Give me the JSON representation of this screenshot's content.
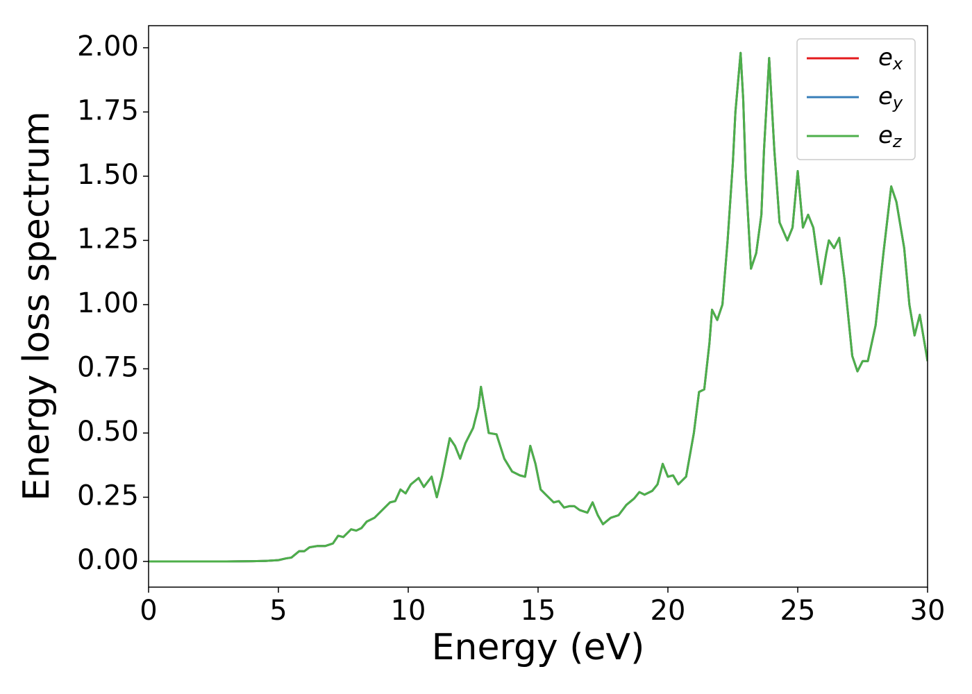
{
  "chart_data": {
    "type": "line",
    "xlabel": "Energy (eV)",
    "ylabel": "Energy loss spectrum",
    "xlim": [
      0,
      30
    ],
    "xticks": [
      0,
      5,
      10,
      15,
      20,
      25,
      30
    ],
    "ylim": [
      -0.1,
      2.086
    ],
    "yticks": [
      {
        "value": 0,
        "label": "0.00"
      },
      {
        "value": 0.25,
        "label": "0.25"
      },
      {
        "value": 0.5,
        "label": "0.50"
      },
      {
        "value": 0.75,
        "label": "0.75"
      },
      {
        "value": 1,
        "label": "1.00"
      },
      {
        "value": 1.25,
        "label": "1.25"
      },
      {
        "value": 1.5,
        "label": "1.50"
      },
      {
        "value": 1.75,
        "label": "1.75"
      },
      {
        "value": 2,
        "label": "2.00"
      }
    ],
    "legend": "upper right",
    "x": [
      0,
      1,
      2,
      3,
      4,
      4.5,
      5,
      5.3,
      5.5,
      5.8,
      6.0,
      6.2,
      6.5,
      6.8,
      7.1,
      7.3,
      7.5,
      7.8,
      8.0,
      8.2,
      8.4,
      8.7,
      9.0,
      9.3,
      9.5,
      9.7,
      9.9,
      10.1,
      10.4,
      10.6,
      10.9,
      11.1,
      11.3,
      11.6,
      11.8,
      12.0,
      12.2,
      12.5,
      12.7,
      12.8,
      12.9,
      13.1,
      13.4,
      13.7,
      14.0,
      14.3,
      14.5,
      14.7,
      14.9,
      15.1,
      15.3,
      15.6,
      15.8,
      16.0,
      16.2,
      16.4,
      16.6,
      16.9,
      17.1,
      17.3,
      17.5,
      17.8,
      18.1,
      18.4,
      18.7,
      18.9,
      19.1,
      19.4,
      19.6,
      19.8,
      20.0,
      20.2,
      20.4,
      20.7,
      21.0,
      21.2,
      21.4,
      21.6,
      21.7,
      21.9,
      22.1,
      22.3,
      22.5,
      22.6,
      22.8,
      22.9,
      23.0,
      23.2,
      23.4,
      23.6,
      23.7,
      23.9,
      24.1,
      24.3,
      24.6,
      24.8,
      25.0,
      25.2,
      25.4,
      25.6,
      25.9,
      26.1,
      26.2,
      26.4,
      26.6,
      26.8,
      27.1,
      27.3,
      27.5,
      27.7,
      28.0,
      28.3,
      28.6,
      28.8,
      29.1,
      29.3,
      29.5,
      29.7,
      30.0
    ],
    "series": [
      {
        "name": "ex",
        "color": "#e41a1c",
        "values": [
          0,
          0,
          0,
          0,
          0.001,
          0.002,
          0.005,
          0.012,
          0.015,
          0.04,
          0.04,
          0.055,
          0.06,
          0.06,
          0.07,
          0.1,
          0.095,
          0.125,
          0.12,
          0.13,
          0.155,
          0.17,
          0.2,
          0.23,
          0.235,
          0.28,
          0.265,
          0.3,
          0.325,
          0.29,
          0.33,
          0.25,
          0.33,
          0.48,
          0.45,
          0.4,
          0.46,
          0.52,
          0.6,
          0.68,
          0.62,
          0.5,
          0.495,
          0.4,
          0.35,
          0.335,
          0.33,
          0.45,
          0.38,
          0.28,
          0.26,
          0.23,
          0.235,
          0.21,
          0.215,
          0.215,
          0.2,
          0.19,
          0.23,
          0.18,
          0.145,
          0.17,
          0.18,
          0.22,
          0.245,
          0.27,
          0.26,
          0.275,
          0.3,
          0.38,
          0.33,
          0.335,
          0.3,
          0.33,
          0.5,
          0.66,
          0.67,
          0.85,
          0.98,
          0.94,
          1.0,
          1.25,
          1.55,
          1.75,
          1.98,
          1.8,
          1.5,
          1.14,
          1.2,
          1.35,
          1.6,
          1.96,
          1.6,
          1.32,
          1.25,
          1.3,
          1.52,
          1.3,
          1.35,
          1.3,
          1.08,
          1.2,
          1.25,
          1.22,
          1.26,
          1.1,
          0.8,
          0.74,
          0.78,
          0.78,
          0.92,
          1.2,
          1.46,
          1.4,
          1.22,
          1.0,
          0.88,
          0.96,
          0.78
        ]
      },
      {
        "name": "ey",
        "color": "#377eb8",
        "values": [
          0,
          0,
          0,
          0,
          0.001,
          0.002,
          0.005,
          0.012,
          0.015,
          0.04,
          0.04,
          0.055,
          0.06,
          0.06,
          0.07,
          0.1,
          0.095,
          0.125,
          0.12,
          0.13,
          0.155,
          0.17,
          0.2,
          0.23,
          0.235,
          0.28,
          0.265,
          0.3,
          0.325,
          0.29,
          0.33,
          0.25,
          0.33,
          0.48,
          0.45,
          0.4,
          0.46,
          0.52,
          0.6,
          0.68,
          0.62,
          0.5,
          0.495,
          0.4,
          0.35,
          0.335,
          0.33,
          0.45,
          0.38,
          0.28,
          0.26,
          0.23,
          0.235,
          0.21,
          0.215,
          0.215,
          0.2,
          0.19,
          0.23,
          0.18,
          0.145,
          0.17,
          0.18,
          0.22,
          0.245,
          0.27,
          0.26,
          0.275,
          0.3,
          0.38,
          0.33,
          0.335,
          0.3,
          0.33,
          0.5,
          0.66,
          0.67,
          0.85,
          0.98,
          0.94,
          1.0,
          1.25,
          1.55,
          1.75,
          1.98,
          1.8,
          1.5,
          1.14,
          1.2,
          1.35,
          1.6,
          1.96,
          1.6,
          1.32,
          1.25,
          1.3,
          1.52,
          1.3,
          1.35,
          1.3,
          1.08,
          1.2,
          1.25,
          1.22,
          1.26,
          1.1,
          0.8,
          0.74,
          0.78,
          0.78,
          0.92,
          1.2,
          1.46,
          1.4,
          1.22,
          1.0,
          0.88,
          0.96,
          0.78
        ]
      },
      {
        "name": "ez",
        "color": "#4daf4a",
        "values": [
          0,
          0,
          0,
          0,
          0.001,
          0.002,
          0.005,
          0.012,
          0.015,
          0.04,
          0.04,
          0.055,
          0.06,
          0.06,
          0.07,
          0.1,
          0.095,
          0.125,
          0.12,
          0.13,
          0.155,
          0.17,
          0.2,
          0.23,
          0.235,
          0.28,
          0.265,
          0.3,
          0.325,
          0.29,
          0.33,
          0.25,
          0.33,
          0.48,
          0.45,
          0.4,
          0.46,
          0.52,
          0.6,
          0.68,
          0.62,
          0.5,
          0.495,
          0.4,
          0.35,
          0.335,
          0.33,
          0.45,
          0.38,
          0.28,
          0.26,
          0.23,
          0.235,
          0.21,
          0.215,
          0.215,
          0.2,
          0.19,
          0.23,
          0.18,
          0.145,
          0.17,
          0.18,
          0.22,
          0.245,
          0.27,
          0.26,
          0.275,
          0.3,
          0.38,
          0.33,
          0.335,
          0.3,
          0.33,
          0.5,
          0.66,
          0.67,
          0.85,
          0.98,
          0.94,
          1.0,
          1.25,
          1.55,
          1.75,
          1.98,
          1.8,
          1.5,
          1.14,
          1.2,
          1.35,
          1.6,
          1.96,
          1.6,
          1.32,
          1.25,
          1.3,
          1.52,
          1.3,
          1.35,
          1.3,
          1.08,
          1.2,
          1.25,
          1.22,
          1.26,
          1.1,
          0.8,
          0.74,
          0.78,
          0.78,
          0.92,
          1.2,
          1.46,
          1.4,
          1.22,
          1.0,
          0.88,
          0.96,
          0.78
        ]
      }
    ]
  }
}
